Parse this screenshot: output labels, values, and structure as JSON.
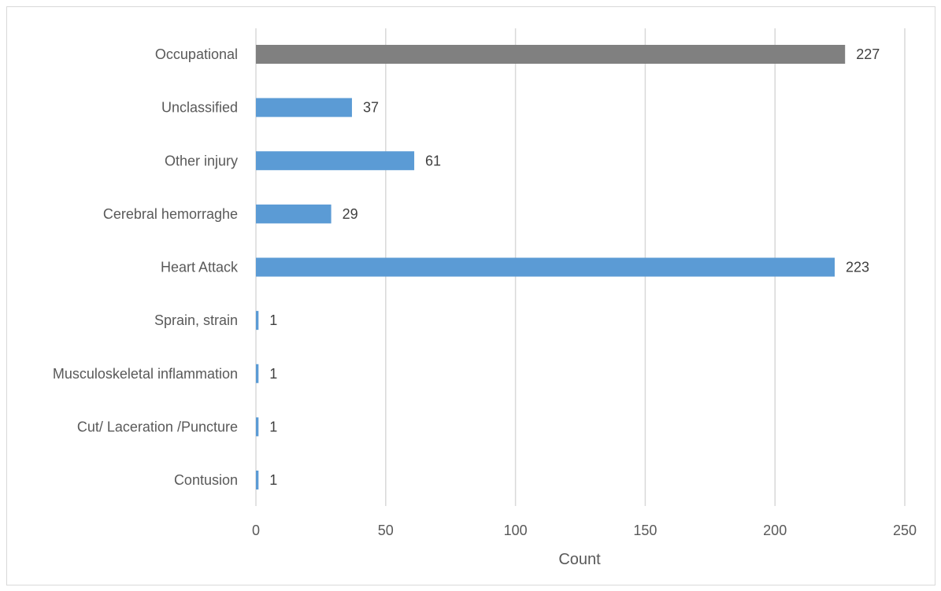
{
  "chart_data": {
    "type": "bar",
    "orientation": "horizontal",
    "categories": [
      "Occupational",
      "Unclassified",
      "Other injury",
      "Cerebral hemorraghe",
      "Heart Attack",
      "Sprain, strain",
      "Musculoskeletal inflammation",
      "Cut/ Laceration /Puncture",
      "Contusion"
    ],
    "values": [
      227,
      37,
      61,
      29,
      223,
      1,
      1,
      1,
      1
    ],
    "bar_colors": [
      "#808080",
      "#5b9bd5",
      "#5b9bd5",
      "#5b9bd5",
      "#5b9bd5",
      "#5b9bd5",
      "#5b9bd5",
      "#5b9bd5",
      "#5b9bd5"
    ],
    "xlabel": "Count",
    "ylabel": "",
    "xlim": [
      0,
      250
    ],
    "xticks": [
      0,
      50,
      100,
      150,
      200,
      250
    ],
    "grid": "vertical",
    "data_labels": true
  }
}
